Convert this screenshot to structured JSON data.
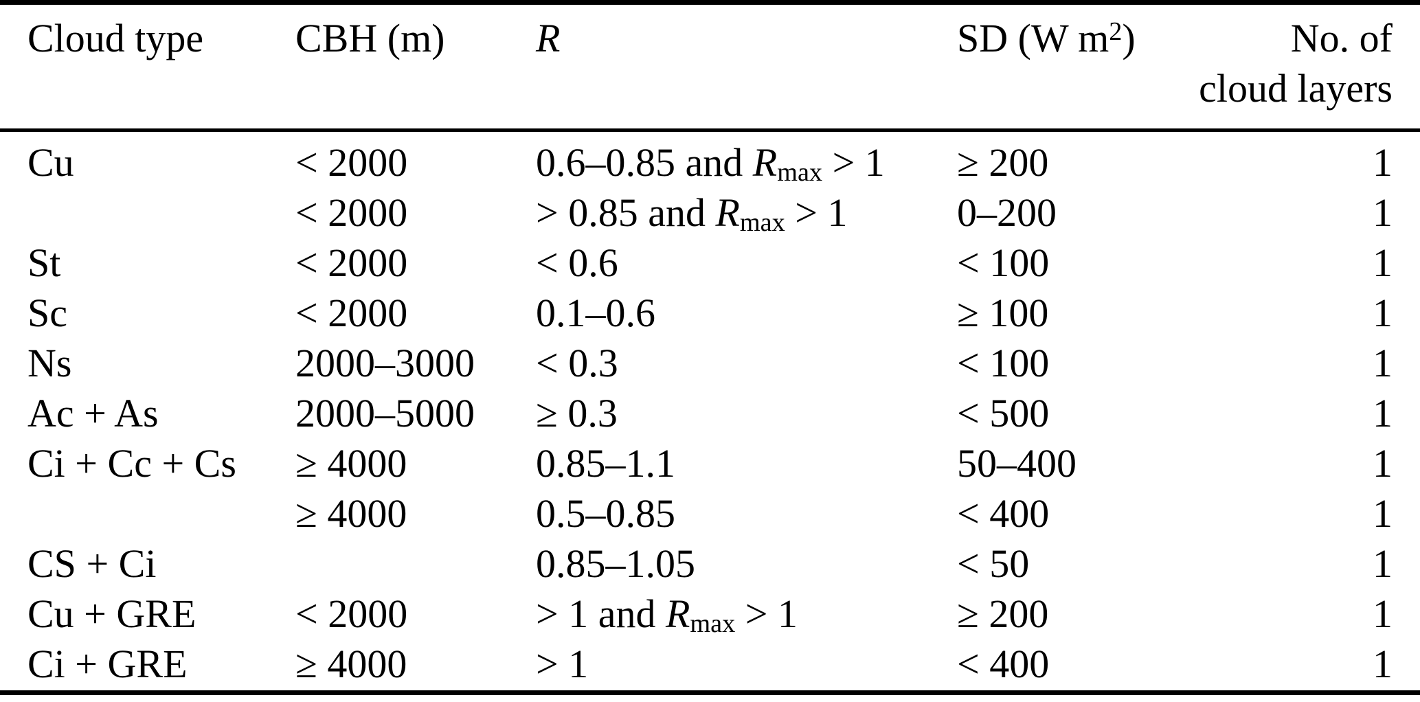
{
  "table": {
    "title": "Cloud classification criteria table",
    "text_color": "#000000",
    "background_color": "#ffffff",
    "columns": [
      {
        "id": "cloud_type",
        "label": "Cloud type",
        "align": "left"
      },
      {
        "id": "cbh",
        "label": "CBH (m)",
        "align": "left"
      },
      {
        "id": "r",
        "label": "*R*",
        "align": "left"
      },
      {
        "id": "sd",
        "label": "SD (W m^{2})",
        "align": "left"
      },
      {
        "id": "layers",
        "label_line1": "No. of",
        "label_line2": "cloud layers",
        "align": "right"
      }
    ],
    "rows": [
      {
        "cloud_type": "Cu",
        "cbh": "< 2000",
        "r": "0.6–0.85 and *R*_{max} > 1",
        "sd": "≥ 200",
        "layers": "1"
      },
      {
        "cloud_type": "",
        "cbh": "< 2000",
        "r": "> 0.85 and *R*_{max} > 1",
        "sd": "0–200",
        "layers": "1"
      },
      {
        "cloud_type": "St",
        "cbh": "< 2000",
        "r": "< 0.6",
        "sd": "< 100",
        "layers": "1"
      },
      {
        "cloud_type": "Sc",
        "cbh": "< 2000",
        "r": "0.1–0.6",
        "sd": "≥ 100",
        "layers": "1"
      },
      {
        "cloud_type": "Ns",
        "cbh": "2000–3000",
        "r": "< 0.3",
        "sd": "< 100",
        "layers": "1"
      },
      {
        "cloud_type": "Ac + As",
        "cbh": "2000–5000",
        "r": "≥ 0.3",
        "sd": "< 500",
        "layers": "1"
      },
      {
        "cloud_type": "Ci + Cc + Cs",
        "cbh": "≥ 4000",
        "r": "0.85–1.1",
        "sd": "50–400",
        "layers": "1"
      },
      {
        "cloud_type": "",
        "cbh": "≥ 4000",
        "r": "0.5–0.85",
        "sd": "< 400",
        "layers": "1"
      },
      {
        "cloud_type": "CS + Ci",
        "cbh": "",
        "r": "0.85–1.05",
        "sd": "< 50",
        "layers": "1"
      },
      {
        "cloud_type": "Cu + GRE",
        "cbh": "< 2000",
        "r": "> 1 and *R*_{max} > 1",
        "sd": "≥ 200",
        "layers": "1"
      },
      {
        "cloud_type": "Ci + GRE",
        "cbh": "≥ 4000",
        "r": "> 1",
        "sd": "< 400",
        "layers": "1"
      }
    ]
  }
}
